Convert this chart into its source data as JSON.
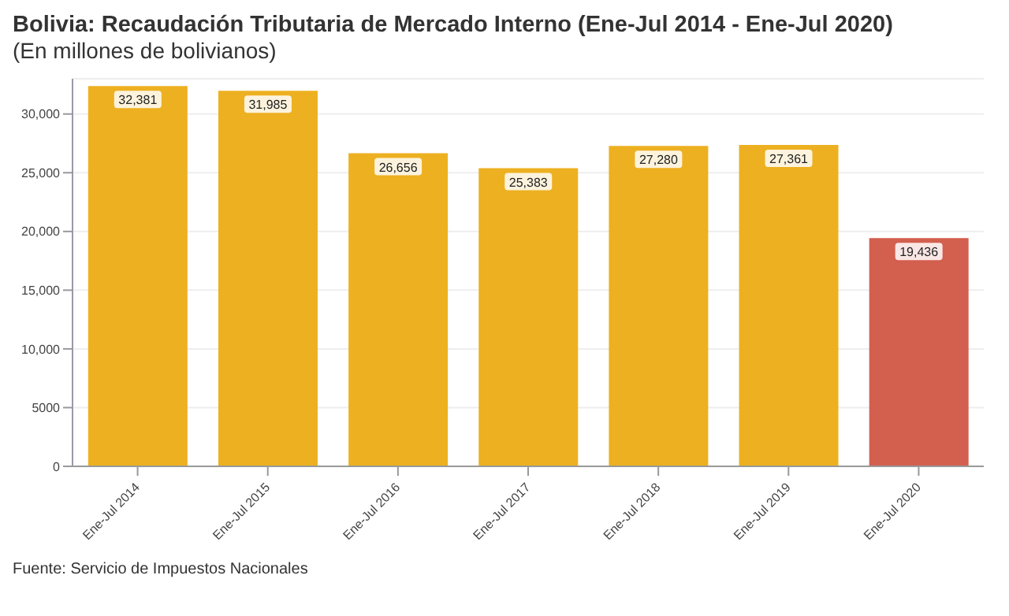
{
  "chart_data": {
    "type": "bar",
    "title": "Bolivia: Recaudación Tributaria de Mercado Interno (Ene-Jul 2014 - Ene-Jul 2020)",
    "subtitle": "(En millones de bolivianos)",
    "categories": [
      "Ene-Jul 2014",
      "Ene-Jul 2015",
      "Ene-Jul 2016",
      "Ene-Jul 2017",
      "Ene-Jul 2018",
      "Ene-Jul 2019",
      "Ene-Jul 2020"
    ],
    "values": [
      32381,
      31985,
      26656,
      25383,
      27280,
      27361,
      19436
    ],
    "colors": [
      "#edb020",
      "#edb020",
      "#edb020",
      "#edb020",
      "#edb020",
      "#edb020",
      "#d35f4f"
    ],
    "value_labels": [
      "32,381",
      "31,985",
      "26,656",
      "25,383",
      "27,280",
      "27,361",
      "19,436"
    ],
    "ylim": [
      0,
      33000
    ],
    "yticks": [
      0,
      5000,
      {
        "value": 10000,
        "label": "10,000"
      },
      {
        "value": 15000,
        "label": "15,000"
      },
      {
        "value": 20000,
        "label": "20,000"
      },
      {
        "value": 25000,
        "label": "25,000"
      },
      {
        "value": 30000,
        "label": "30,000"
      }
    ],
    "grid": "y",
    "annotations": [
      "Fuente: Servicio de Impuestos Nacionales"
    ]
  }
}
